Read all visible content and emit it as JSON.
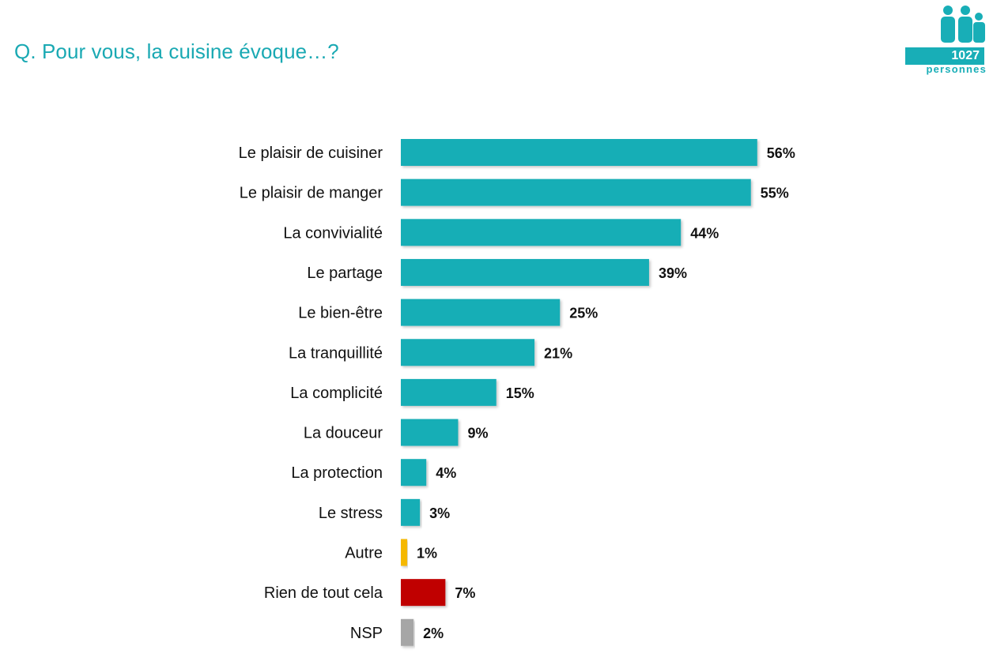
{
  "header": {
    "title": "Q. Pour vous, la cuisine évoque…?"
  },
  "badge": {
    "count": "1027",
    "unit": "personnes",
    "icon": "people-icon",
    "color": "#18aeb7"
  },
  "chart_data": {
    "type": "bar",
    "orientation": "horizontal",
    "categories": [
      "Le plaisir de cuisiner",
      "Le plaisir de manger",
      "La convivialité",
      "Le partage",
      "Le bien-être",
      "La tranquillité",
      "La complicité",
      "La douceur",
      "La protection",
      "Le stress",
      "Autre",
      "Rien de tout cela",
      "NSP"
    ],
    "values": [
      56,
      55,
      44,
      39,
      25,
      21,
      15,
      9,
      4,
      3,
      1,
      7,
      2
    ],
    "labels": [
      "56%",
      "55%",
      "44%",
      "39%",
      "25%",
      "21%",
      "15%",
      "9%",
      "4%",
      "3%",
      "1%",
      "7%",
      "2%"
    ],
    "colors": [
      "#19aeb6",
      "#19aeb6",
      "#19aeb6",
      "#19aeb6",
      "#19aeb6",
      "#19aeb6",
      "#19aeb6",
      "#19aeb6",
      "#19aeb6",
      "#19aeb6",
      "#f5b800",
      "#c00000",
      "#a6a6a6"
    ],
    "unit": "%",
    "grid": false,
    "legend": "none"
  }
}
